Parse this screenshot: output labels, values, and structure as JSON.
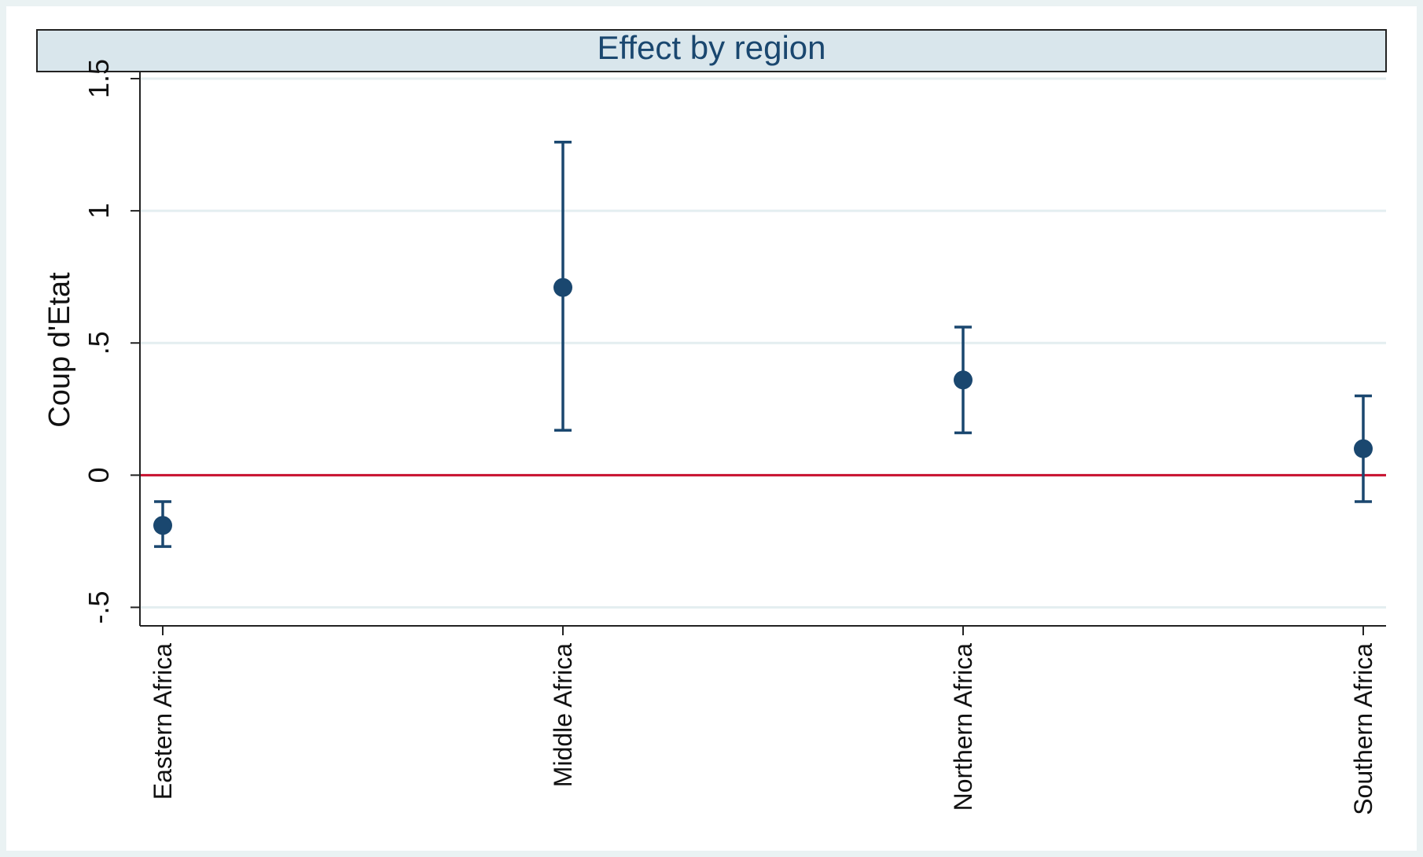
{
  "chart_data": {
    "type": "scatter",
    "subtype": "coefficient-plot-with-confidence-intervals",
    "title": "Effect by region",
    "ylabel": "Coup d'Etat",
    "xlabel": "",
    "categories": [
      "Eastern Africa",
      "Middle Africa",
      "Northern Africa",
      "Southern Africa"
    ],
    "y_tick_values": [
      -0.5,
      0,
      0.5,
      1,
      1.5
    ],
    "y_tick_labels": [
      "-.5",
      "0",
      ".5",
      "1",
      "1.5"
    ],
    "ylim": [
      -0.57,
      1.5
    ],
    "points": [
      {
        "category": "Eastern Africa",
        "estimate": -0.19,
        "ci_low": -0.27,
        "ci_high": -0.1
      },
      {
        "category": "Middle Africa",
        "estimate": 0.71,
        "ci_low": 0.17,
        "ci_high": 1.26
      },
      {
        "category": "Northern Africa",
        "estimate": 0.36,
        "ci_low": 0.16,
        "ci_high": 0.56
      },
      {
        "category": "Southern Africa",
        "estimate": 0.1,
        "ci_low": -0.1,
        "ci_high": 0.3
      }
    ],
    "reference_line": {
      "y": 0,
      "color": "#c8102e"
    },
    "grid": true,
    "colors": {
      "marker": "#1a476f",
      "title_band": "#d9e6ec",
      "gridline": "#e4eef0",
      "background": "#ffffff",
      "outer_background": "#eaf2f3"
    }
  }
}
